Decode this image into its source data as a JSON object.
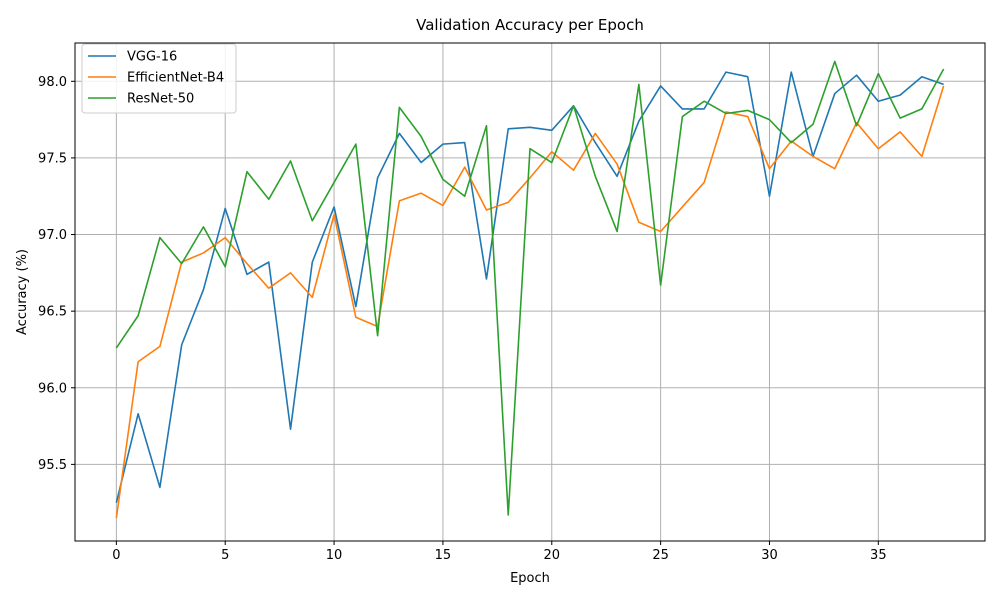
{
  "chart_data": {
    "type": "line",
    "title": "Validation Accuracy per Epoch",
    "xlabel": "Epoch",
    "ylabel": "Accuracy (%)",
    "xlim": [
      -1.9,
      39.9
    ],
    "ylim": [
      95.0,
      98.25
    ],
    "xticks": [
      0,
      5,
      10,
      15,
      20,
      25,
      30,
      35
    ],
    "yticks": [
      95.5,
      96.0,
      96.5,
      97.0,
      97.5,
      98.0
    ],
    "ytick_labels": [
      "95.5",
      "96.0",
      "96.5",
      "97.0",
      "97.5",
      "98.0"
    ],
    "grid": true,
    "legend_position": "top-left",
    "x": [
      0,
      1,
      2,
      3,
      4,
      5,
      6,
      7,
      8,
      9,
      10,
      11,
      12,
      13,
      14,
      15,
      16,
      17,
      18,
      19,
      20,
      21,
      22,
      23,
      24,
      25,
      26,
      27,
      28,
      29,
      30,
      31,
      32,
      33,
      34,
      35,
      36,
      37,
      38
    ],
    "series": [
      {
        "name": "VGG-16",
        "color": "#1f77b4",
        "values": [
          95.25,
          95.83,
          95.35,
          96.28,
          96.64,
          97.17,
          96.74,
          96.82,
          95.73,
          96.82,
          97.18,
          96.53,
          97.37,
          97.66,
          97.47,
          97.59,
          97.6,
          96.71,
          97.69,
          97.7,
          97.68,
          97.84,
          97.6,
          97.38,
          97.74,
          97.97,
          97.82,
          97.82,
          98.06,
          98.03,
          97.25,
          98.06,
          97.51,
          97.92,
          98.04,
          97.87,
          97.91,
          98.03,
          97.98
        ]
      },
      {
        "name": "EfficientNet-B4",
        "color": "#ff7f0e",
        "values": [
          95.15,
          96.17,
          96.27,
          96.82,
          96.88,
          96.98,
          96.81,
          96.65,
          96.75,
          96.59,
          97.13,
          96.46,
          96.4,
          97.22,
          97.27,
          97.19,
          97.44,
          97.16,
          97.21,
          97.37,
          97.54,
          97.42,
          97.66,
          97.46,
          97.08,
          97.02,
          97.18,
          97.34,
          97.8,
          97.77,
          97.43,
          97.61,
          97.51,
          97.43,
          97.73,
          97.56,
          97.67,
          97.51,
          97.97
        ]
      },
      {
        "name": "ResNet-50",
        "color": "#2ca02c",
        "values": [
          96.26,
          96.47,
          96.98,
          96.81,
          97.05,
          96.79,
          97.41,
          97.23,
          97.48,
          97.09,
          97.34,
          97.59,
          96.34,
          97.83,
          97.64,
          97.36,
          97.25,
          97.71,
          95.17,
          97.56,
          97.47,
          97.84,
          97.38,
          97.02,
          97.98,
          96.67,
          97.77,
          97.87,
          97.79,
          97.81,
          97.75,
          97.6,
          97.72,
          98.13,
          97.71,
          98.05,
          97.76,
          97.82,
          98.08
        ]
      }
    ]
  }
}
